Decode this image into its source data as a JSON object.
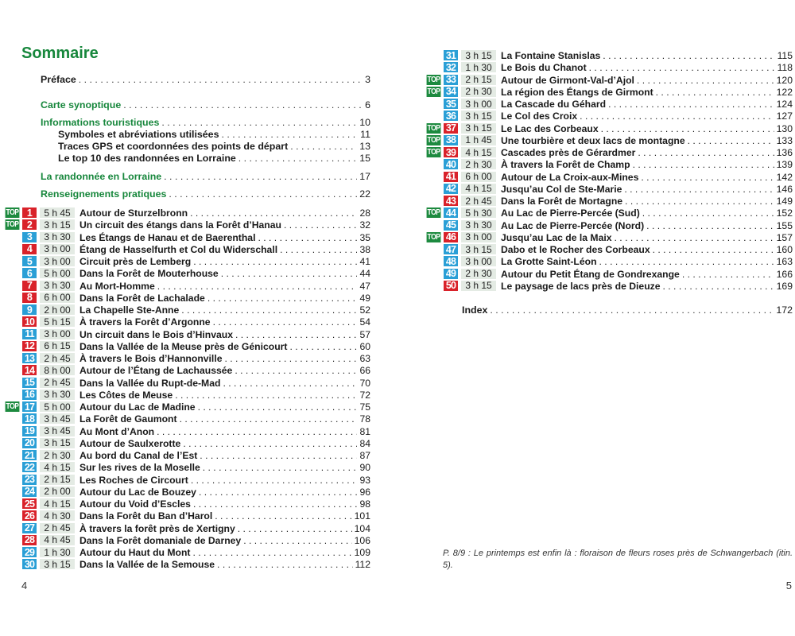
{
  "page_title": "Sommaire",
  "front_matter": [
    {
      "label": "Préface",
      "page": "3",
      "style": "black"
    },
    {
      "label": "Carte synoptique",
      "page": "6",
      "style": "green"
    },
    {
      "label": "Informations touristiques",
      "page": "10",
      "style": "green"
    },
    {
      "label": "Symboles et abréviations utilisées",
      "page": "11",
      "style": "sub"
    },
    {
      "label": "Traces GPS et coordonnées des points de départ",
      "page": "13",
      "style": "sub"
    },
    {
      "label": "Le top 10 des randonnées en Lorraine",
      "page": "15",
      "style": "sub"
    },
    {
      "label": "La randonnée en Lorraine",
      "page": "17",
      "style": "green"
    },
    {
      "label": "Renseignements pratiques",
      "page": "22",
      "style": "green"
    }
  ],
  "top_label": "TOP",
  "colors": {
    "blue": "#2a9fd6",
    "red": "#d9222a",
    "top_green": "#1d8a3f",
    "heading_green": "#17873c",
    "time_bg": "#e4ebe4"
  },
  "routes": [
    {
      "n": "1",
      "color": "red",
      "top": true,
      "time": "5 h 45",
      "title": "Autour de Sturzelbronn",
      "page": "28"
    },
    {
      "n": "2",
      "color": "red",
      "top": true,
      "time": "3 h 15",
      "title": "Un circuit des étangs dans la Forêt d’Hanau",
      "page": "32"
    },
    {
      "n": "3",
      "color": "blue",
      "top": false,
      "time": "3 h 30",
      "title": "Les Étangs de Hanau et de Baerenthal",
      "page": "35"
    },
    {
      "n": "4",
      "color": "red",
      "top": false,
      "time": "3 h 00",
      "title": "Étang de Hasselfurth et Col du Widerschall",
      "page": "38"
    },
    {
      "n": "5",
      "color": "blue",
      "top": false,
      "time": "3 h 00",
      "title": "Circuit près de Lemberg",
      "page": "41"
    },
    {
      "n": "6",
      "color": "blue",
      "top": false,
      "time": "5 h 00",
      "title": "Dans la Forêt de Mouterhouse",
      "page": "44"
    },
    {
      "n": "7",
      "color": "red",
      "top": false,
      "time": "3 h 30",
      "title": "Au Mort-Homme",
      "page": "47"
    },
    {
      "n": "8",
      "color": "red",
      "top": false,
      "time": "6 h 00",
      "title": "Dans la Forêt de Lachalade",
      "page": "49"
    },
    {
      "n": "9",
      "color": "blue",
      "top": false,
      "time": "2 h 00",
      "title": "La Chapelle Ste-Anne",
      "page": "52"
    },
    {
      "n": "10",
      "color": "red",
      "top": false,
      "time": "5 h 15",
      "title": "À travers la Forêt d’Argonne",
      "page": "54"
    },
    {
      "n": "11",
      "color": "blue",
      "top": false,
      "time": "3 h 00",
      "title": "Un circuit dans le Bois d’Hinvaux",
      "page": "57"
    },
    {
      "n": "12",
      "color": "red",
      "top": false,
      "time": "6 h 15",
      "title": "Dans la Vallée de la Meuse près de Génicourt",
      "page": "60"
    },
    {
      "n": "13",
      "color": "blue",
      "top": false,
      "time": "2 h 45",
      "title": "À travers le Bois d’Hannonville",
      "page": "63"
    },
    {
      "n": "14",
      "color": "red",
      "top": false,
      "time": "8 h 00",
      "title": "Autour de l’Étang de Lachaussée",
      "page": "66"
    },
    {
      "n": "15",
      "color": "blue",
      "top": false,
      "time": "2 h 45",
      "title": "Dans la Vallée du Rupt-de-Mad",
      "page": "70"
    },
    {
      "n": "16",
      "color": "blue",
      "top": false,
      "time": "3 h 30",
      "title": "Les Côtes de Meuse",
      "page": "72"
    },
    {
      "n": "17",
      "color": "blue",
      "top": true,
      "time": "5 h 00",
      "title": "Autour du Lac de Madine",
      "page": "75"
    },
    {
      "n": "18",
      "color": "blue",
      "top": false,
      "time": "3 h 45",
      "title": "La Forêt de Gaumont",
      "page": "78"
    },
    {
      "n": "19",
      "color": "blue",
      "top": false,
      "time": "3 h 45",
      "title": "Au Mont d’Anon",
      "page": "81"
    },
    {
      "n": "20",
      "color": "blue",
      "top": false,
      "time": "3 h 15",
      "title": "Autour de Saulxerotte",
      "page": "84"
    },
    {
      "n": "21",
      "color": "blue",
      "top": false,
      "time": "2 h 30",
      "title": "Au bord du Canal de l’Est",
      "page": "87"
    },
    {
      "n": "22",
      "color": "blue",
      "top": false,
      "time": "4 h 15",
      "title": "Sur les rives de la Moselle",
      "page": "90"
    },
    {
      "n": "23",
      "color": "blue",
      "top": false,
      "time": "2 h 15",
      "title": "Les Roches de Circourt",
      "page": "93"
    },
    {
      "n": "24",
      "color": "blue",
      "top": false,
      "time": "2 h 00",
      "title": "Autour du Lac de Bouzey",
      "page": "96"
    },
    {
      "n": "25",
      "color": "red",
      "top": false,
      "time": "4 h 15",
      "title": "Autour du Void d’Escles",
      "page": "98"
    },
    {
      "n": "26",
      "color": "red",
      "top": false,
      "time": "4 h 30",
      "title": "Dans la Forêt du Ban d’Harol",
      "page": "101"
    },
    {
      "n": "27",
      "color": "blue",
      "top": false,
      "time": "2 h 45",
      "title": "À travers la forêt près de Xertigny",
      "page": "104"
    },
    {
      "n": "28",
      "color": "red",
      "top": false,
      "time": "4 h 45",
      "title": "Dans la Forêt domaniale de Darney",
      "page": "106"
    },
    {
      "n": "29",
      "color": "blue",
      "top": false,
      "time": "1 h 30",
      "title": "Autour du Haut du Mont",
      "page": "109"
    },
    {
      "n": "30",
      "color": "blue",
      "top": false,
      "time": "3 h 15",
      "title": "Dans la Vallée de la Semouse",
      "page": "112"
    },
    {
      "n": "31",
      "color": "blue",
      "top": false,
      "time": "3 h 15",
      "title": "La Fontaine Stanislas",
      "page": "115"
    },
    {
      "n": "32",
      "color": "blue",
      "top": false,
      "time": "1 h 30",
      "title": "Le Bois du Chanot",
      "page": "118"
    },
    {
      "n": "33",
      "color": "blue",
      "top": true,
      "time": "2 h 15",
      "title": "Autour de Girmont-Val-d’Ajol",
      "page": "120"
    },
    {
      "n": "34",
      "color": "blue",
      "top": true,
      "time": "2 h 30",
      "title": "La région des Étangs de Girmont",
      "page": "122"
    },
    {
      "n": "35",
      "color": "blue",
      "top": false,
      "time": "3 h 00",
      "title": "La Cascade du Géhard",
      "page": "124"
    },
    {
      "n": "36",
      "color": "blue",
      "top": false,
      "time": "3 h 15",
      "title": "Le Col des Croix",
      "page": "127"
    },
    {
      "n": "37",
      "color": "red",
      "top": true,
      "time": "3 h 15",
      "title": "Le Lac des Corbeaux",
      "page": "130"
    },
    {
      "n": "38",
      "color": "blue",
      "top": true,
      "time": "1 h 45",
      "title": "Une tourbière et deux lacs de montagne",
      "page": "133"
    },
    {
      "n": "39",
      "color": "red",
      "top": true,
      "time": "4 h 15",
      "title": "Cascades près de Gérardmer",
      "page": "136"
    },
    {
      "n": "40",
      "color": "blue",
      "top": false,
      "time": "2 h 30",
      "title": "À travers la Forêt de Champ",
      "page": "139"
    },
    {
      "n": "41",
      "color": "red",
      "top": false,
      "time": "6 h 00",
      "title": "Autour de La Croix-aux-Mines",
      "page": "142"
    },
    {
      "n": "42",
      "color": "blue",
      "top": false,
      "time": "4 h 15",
      "title": "Jusqu’au Col de Ste-Marie",
      "page": "146"
    },
    {
      "n": "43",
      "color": "red",
      "top": false,
      "time": "2 h 45",
      "title": "Dans la Forêt de Mortagne",
      "page": "149"
    },
    {
      "n": "44",
      "color": "blue",
      "top": true,
      "time": "5 h 30",
      "title": "Au Lac de Pierre-Percée (Sud)",
      "page": "152"
    },
    {
      "n": "45",
      "color": "blue",
      "top": false,
      "time": "3 h 30",
      "title": "Au Lac de Pierre-Percée (Nord)",
      "page": "155"
    },
    {
      "n": "46",
      "color": "red",
      "top": true,
      "time": "3 h 00",
      "title": "Jusqu’au Lac de la Maix",
      "page": "157"
    },
    {
      "n": "47",
      "color": "blue",
      "top": false,
      "time": "3 h 15",
      "title": "Dabo et le Rocher des Corbeaux",
      "page": "160"
    },
    {
      "n": "48",
      "color": "blue",
      "top": false,
      "time": "3 h 00",
      "title": "La Grotte Saint-Léon",
      "page": "163"
    },
    {
      "n": "49",
      "color": "blue",
      "top": false,
      "time": "2 h 30",
      "title": "Autour du Petit Étang de Gondrexange",
      "page": "166"
    },
    {
      "n": "50",
      "color": "red",
      "top": false,
      "time": "3 h 15",
      "title": "Le paysage de lacs près de Dieuze",
      "page": "169"
    }
  ],
  "index": {
    "label": "Index",
    "page": "172"
  },
  "caption": "P. 8/9 : Le printemps est enfin là : floraison de fleurs roses près de Schwangerbach (itin. 5).",
  "page_numbers": {
    "left": "4",
    "right": "5"
  }
}
